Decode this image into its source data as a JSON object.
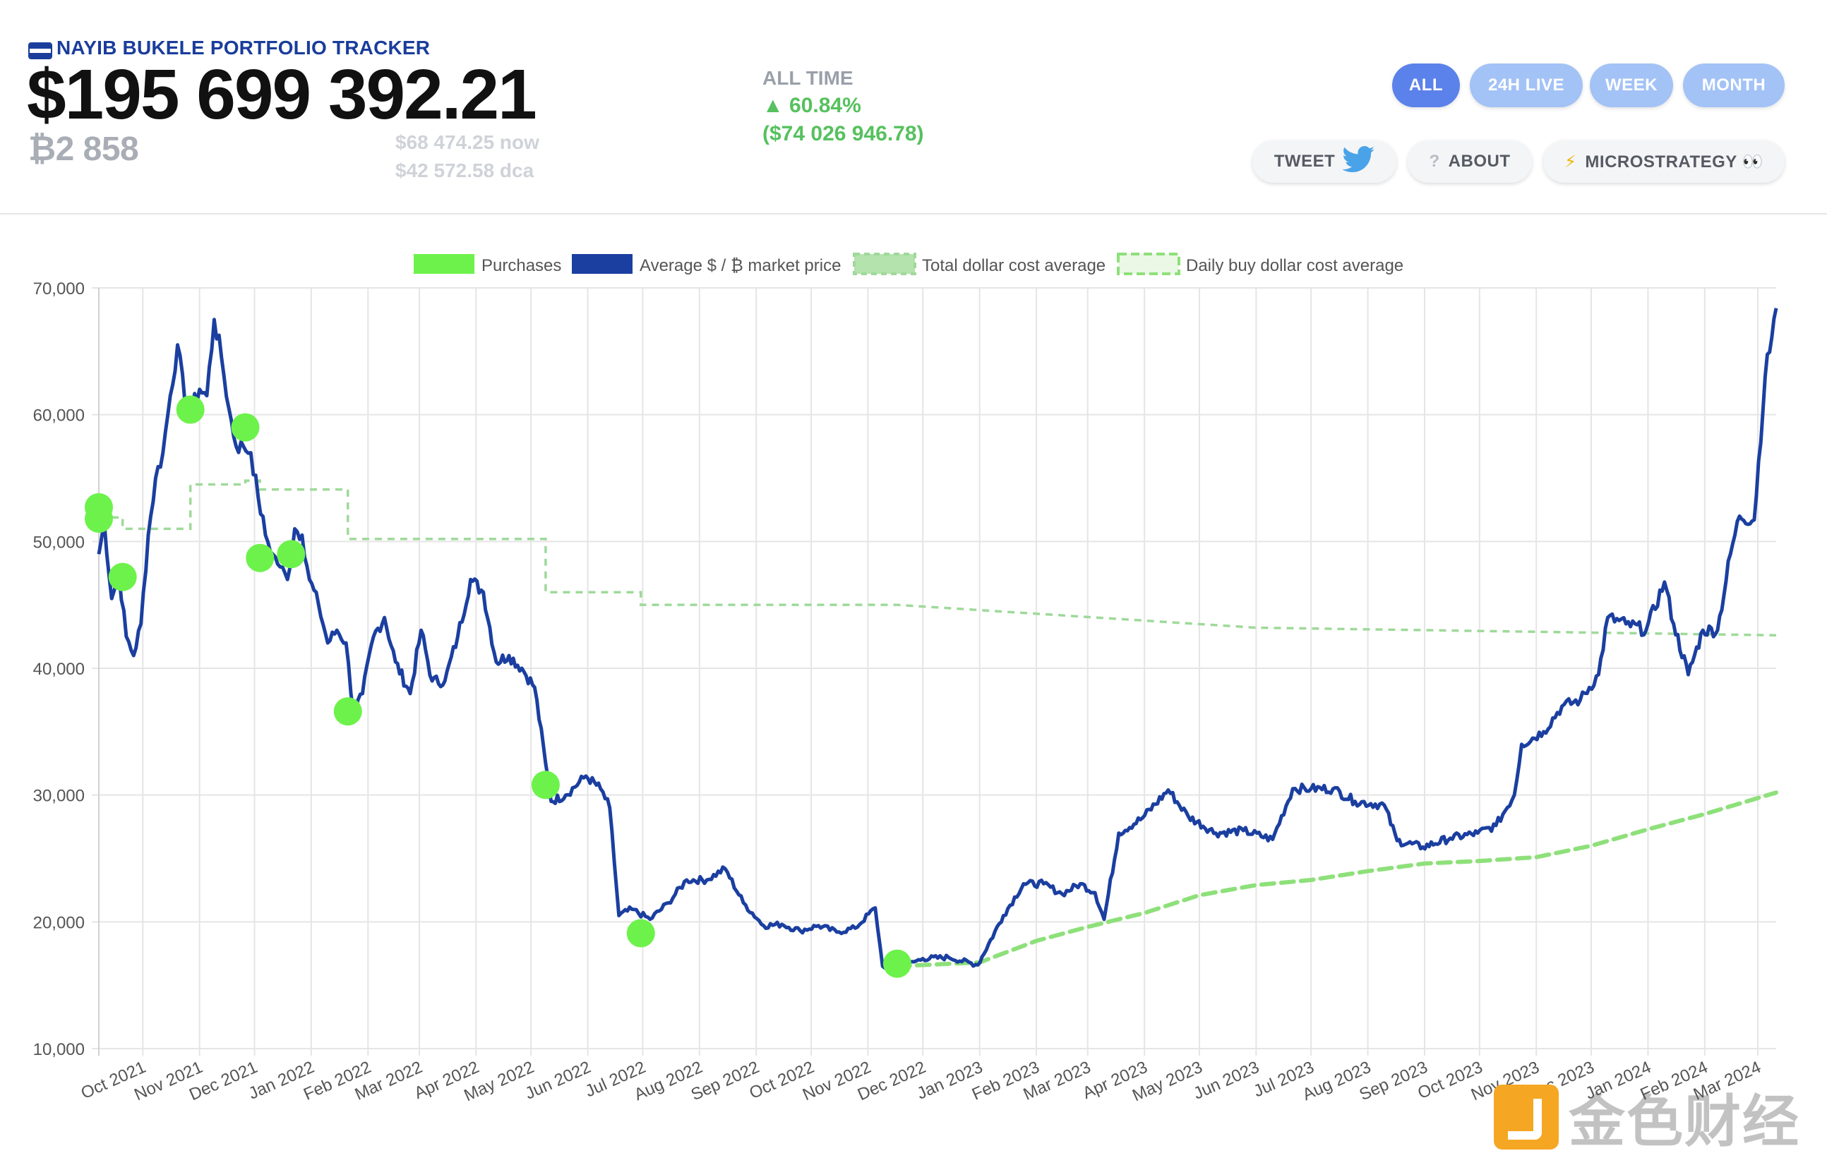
{
  "header": {
    "title": "NAYIB BUKELE PORTFOLIO TRACKER",
    "portfolio_value": "$195 699 392.21",
    "btc_amount": "₿2 858",
    "price_now": "$68 474.25 now",
    "price_dca": "$42 572.58 dca",
    "all_time_label": "ALL TIME",
    "all_time_pct": "▲ 60.84%",
    "all_time_usd": "($74 026 946.78)",
    "flag_colors": [
      "#1a3d9c",
      "#ffffff",
      "#1a3d9c"
    ]
  },
  "range_tabs": [
    {
      "label": "ALL",
      "active": true
    },
    {
      "label": "24H LIVE",
      "active": false
    },
    {
      "label": "WEEK",
      "active": false
    },
    {
      "label": "MONTH",
      "active": false
    }
  ],
  "actions": {
    "tweet": {
      "label": "TWEET",
      "icon": "twitter-bird-icon"
    },
    "about": {
      "label": "ABOUT",
      "icon": "question-icon",
      "icon_glyph": "?"
    },
    "microstrategy": {
      "label": "MICROSTRATEGY 👀",
      "icon": "lightning-icon",
      "icon_glyph": "⚡"
    }
  },
  "colors": {
    "purchase": "#6df24b",
    "price": "#1b3fa0",
    "total_dca": "#9fd99a",
    "daily_dca": "#8ee07a",
    "grid": "#e5e5e5"
  },
  "watermark": {
    "text": "金色财经"
  },
  "chart_data": {
    "type": "line",
    "title": "",
    "xlabel": "",
    "ylabel": "",
    "ylim": [
      10000,
      70000
    ],
    "yticks": [
      10000,
      20000,
      30000,
      40000,
      50000,
      60000,
      70000
    ],
    "ytick_labels": [
      "10,000",
      "20,000",
      "30,000",
      "40,000",
      "50,000",
      "60,000",
      "70,000"
    ],
    "xlim": [
      "2021-09-07",
      "2024-03-11"
    ],
    "x_tick_labels": [
      "Oct 2021",
      "Nov 2021",
      "Dec 2021",
      "Jan 2022",
      "Feb 2022",
      "Mar 2022",
      "Apr 2022",
      "May 2022",
      "Jun 2022",
      "Jul 2022",
      "Aug 2022",
      "Sep 2022",
      "Oct 2022",
      "Nov 2022",
      "Dec 2022",
      "Jan 2023",
      "Feb 2023",
      "Mar 2023",
      "Apr 2023",
      "May 2023",
      "Jun 2023",
      "Jul 2023",
      "Aug 2023",
      "Sep 2023",
      "Oct 2023",
      "Nov 2023",
      "Dec 2023",
      "Jan 2024",
      "Feb 2024",
      "Mar 2024"
    ],
    "grid": true,
    "legend_position": "top",
    "series": [
      {
        "name": "Purchases",
        "kind": "points",
        "x": [
          "2021-09-07",
          "2021-09-07",
          "2021-09-20",
          "2021-10-27",
          "2021-11-26",
          "2021-12-04",
          "2021-12-21",
          "2022-01-21",
          "2022-05-09",
          "2022-06-30",
          "2022-11-17"
        ],
        "y": [
          51800,
          52700,
          47200,
          60400,
          59000,
          48700,
          49000,
          36600,
          30800,
          19100,
          16700
        ]
      },
      {
        "name": "Average $ / ₿ market price",
        "kind": "line",
        "x": [
          "2021-09-07",
          "2021-09-10",
          "2021-09-14",
          "2021-09-18",
          "2021-09-22",
          "2021-09-26",
          "2021-09-30",
          "2021-10-04",
          "2021-10-08",
          "2021-10-12",
          "2021-10-16",
          "2021-10-20",
          "2021-10-24",
          "2021-10-28",
          "2021-11-01",
          "2021-11-05",
          "2021-11-09",
          "2021-11-13",
          "2021-11-17",
          "2021-11-21",
          "2021-11-25",
          "2021-11-29",
          "2021-12-03",
          "2021-12-07",
          "2021-12-11",
          "2021-12-15",
          "2021-12-19",
          "2021-12-23",
          "2021-12-27",
          "2021-12-31",
          "2022-01-05",
          "2022-01-10",
          "2022-01-15",
          "2022-01-20",
          "2022-01-24",
          "2022-01-29",
          "2022-02-04",
          "2022-02-10",
          "2022-02-16",
          "2022-02-24",
          "2022-03-02",
          "2022-03-08",
          "2022-03-15",
          "2022-03-22",
          "2022-03-29",
          "2022-04-05",
          "2022-04-12",
          "2022-04-19",
          "2022-04-26",
          "2022-05-03",
          "2022-05-09",
          "2022-05-12",
          "2022-05-20",
          "2022-05-31",
          "2022-06-08",
          "2022-06-13",
          "2022-06-18",
          "2022-06-25",
          "2022-07-05",
          "2022-07-15",
          "2022-07-25",
          "2022-08-05",
          "2022-08-15",
          "2022-08-25",
          "2022-09-05",
          "2022-09-15",
          "2022-09-25",
          "2022-10-05",
          "2022-10-15",
          "2022-10-25",
          "2022-11-05",
          "2022-11-09",
          "2022-11-20",
          "2022-12-01",
          "2022-12-15",
          "2022-12-31",
          "2023-01-14",
          "2023-01-25",
          "2023-02-05",
          "2023-02-15",
          "2023-02-25",
          "2023-03-05",
          "2023-03-10",
          "2023-03-18",
          "2023-03-31",
          "2023-04-14",
          "2023-04-25",
          "2023-05-10",
          "2023-05-25",
          "2023-06-10",
          "2023-06-21",
          "2023-07-01",
          "2023-07-13",
          "2023-07-25",
          "2023-08-10",
          "2023-08-17",
          "2023-08-31",
          "2023-09-15",
          "2023-09-30",
          "2023-10-10",
          "2023-10-20",
          "2023-10-24",
          "2023-11-05",
          "2023-11-15",
          "2023-11-25",
          "2023-12-05",
          "2023-12-10",
          "2023-12-20",
          "2023-12-31",
          "2024-01-10",
          "2024-01-15",
          "2024-01-23",
          "2024-01-31",
          "2024-02-08",
          "2024-02-15",
          "2024-02-20",
          "2024-02-28",
          "2024-03-05",
          "2024-03-11"
        ],
        "y": [
          49000,
          51500,
          45500,
          47500,
          42500,
          41000,
          43500,
          50500,
          55000,
          57000,
          61500,
          65500,
          61000,
          60500,
          62000,
          61500,
          67500,
          64500,
          60500,
          57500,
          57500,
          57000,
          53500,
          50500,
          49000,
          48000,
          47000,
          51000,
          50500,
          47000,
          45000,
          42000,
          43000,
          42000,
          36500,
          38000,
          42500,
          44000,
          40500,
          38000,
          43000,
          39000,
          39000,
          42500,
          47000,
          46000,
          40500,
          41000,
          40000,
          38500,
          32500,
          29500,
          30000,
          31500,
          30500,
          29000,
          20500,
          21000,
          20200,
          21500,
          23300,
          23300,
          24200,
          21500,
          19700,
          19800,
          19300,
          19700,
          19200,
          19500,
          21100,
          16500,
          16500,
          17100,
          17200,
          16600,
          20500,
          23000,
          23000,
          22200,
          23000,
          22300,
          20200,
          27000,
          28200,
          30400,
          28300,
          27000,
          27200,
          26500,
          30500,
          30500,
          30500,
          29500,
          29200,
          26400,
          25900,
          26600,
          27000,
          27600,
          30000,
          34000,
          35000,
          37000,
          37500,
          39500,
          44000,
          43500,
          43000,
          46800,
          43500,
          39500,
          43000,
          43000,
          49000,
          52000,
          51700,
          63000,
          68400
        ]
      },
      {
        "name": "Total dollar cost average",
        "kind": "step-dashed",
        "x": [
          "2021-09-07",
          "2021-09-20",
          "2021-10-27",
          "2021-11-26",
          "2021-12-04",
          "2022-01-21",
          "2022-05-09",
          "2022-06-30",
          "2022-11-17",
          "2023-06-01",
          "2024-03-11"
        ],
        "y": [
          51900,
          51000,
          54500,
          54800,
          54100,
          50200,
          46000,
          45000,
          45000,
          43200,
          42600
        ]
      },
      {
        "name": "Daily buy dollar cost average",
        "kind": "line-dashed",
        "x": [
          "2022-11-17",
          "2023-01-01",
          "2023-02-01",
          "2023-03-01",
          "2023-04-01",
          "2023-05-01",
          "2023-06-01",
          "2023-07-01",
          "2023-08-01",
          "2023-09-01",
          "2023-10-01",
          "2023-11-01",
          "2023-12-01",
          "2024-01-01",
          "2024-02-01",
          "2024-03-11"
        ],
        "y": [
          16500,
          16800,
          18500,
          19600,
          20700,
          22100,
          22900,
          23300,
          24000,
          24600,
          24800,
          25100,
          26000,
          27300,
          28500,
          30200
        ]
      }
    ]
  }
}
